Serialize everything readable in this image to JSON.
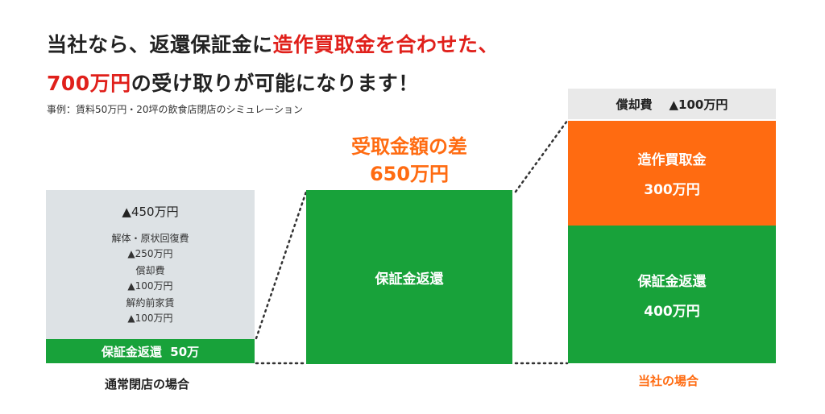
{
  "headline": {
    "line1_a": "当社なら、返還保証金に",
    "line1_b": "造作買取金を合わせた、",
    "line2_a": "700万円",
    "line2_b": "の受け取りが可能になります！"
  },
  "note": "事例：賃料50万円・20坪の飲食店閉店のシミュレーション",
  "normal": {
    "total": "▲450万円",
    "items": [
      {
        "label": "解体・原状回復費",
        "value": "▲250万円"
      },
      {
        "label": "償却費",
        "value": "▲100万円"
      },
      {
        "label": "解約前家賃",
        "value": "▲100万円"
      }
    ],
    "refund": "保証金返還  50万",
    "caption": "通常閉店の場合"
  },
  "diff": {
    "title": "受取金額の差",
    "value": "650万円"
  },
  "middle": {
    "label": "保証金返還"
  },
  "ours": {
    "top": "償却費    ▲100万円",
    "orange_label": "造作買取金",
    "orange_value": "300万円",
    "green_label": "保証金返還",
    "green_value": "400万円",
    "caption": "当社の場合"
  },
  "colors": {
    "green": "#18a23a",
    "orange": "#ff6b11",
    "red": "#e0201b",
    "gray": "#dde2e5"
  }
}
